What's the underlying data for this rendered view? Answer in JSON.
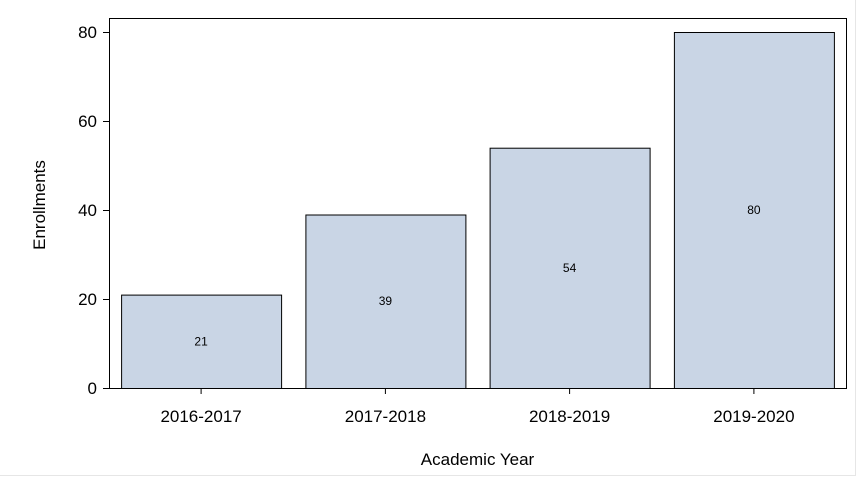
{
  "chart_data": {
    "type": "bar",
    "categories": [
      "2016-2017",
      "2017-2018",
      "2018-2019",
      "2019-2020"
    ],
    "values": [
      21,
      39,
      54,
      80
    ],
    "title": "",
    "xlabel": "Academic Year",
    "ylabel": "Enrollments",
    "ylim": [
      0,
      80
    ],
    "yticks": [
      0,
      20,
      40,
      60,
      80
    ],
    "data_labels": [
      "21",
      "39",
      "54",
      "80"
    ],
    "grid": false,
    "bar_color": "#c9d5e5",
    "bar_edge_color": "#000000"
  }
}
